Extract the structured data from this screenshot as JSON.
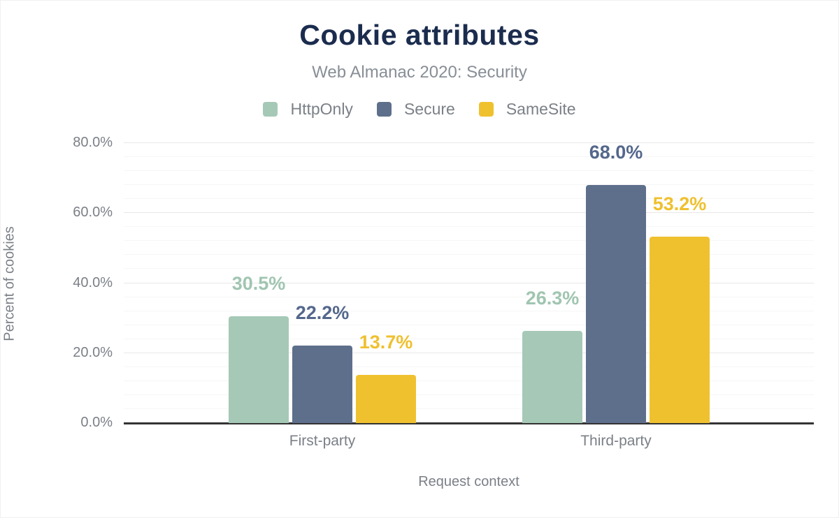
{
  "header": {
    "title": "Cookie attributes",
    "subtitle": "Web Almanac 2020: Security"
  },
  "chart_data": {
    "type": "bar",
    "title": "Cookie attributes",
    "subtitle": "Web Almanac 2020: Security",
    "categories": [
      "First-party",
      "Third-party"
    ],
    "series": [
      {
        "name": "HttpOnly",
        "color": "#a6c9b7",
        "label_color": "#a0c5b1",
        "values": [
          30.5,
          26.3
        ]
      },
      {
        "name": "Secure",
        "color": "#5e6f8c",
        "label_color": "#54678c",
        "values": [
          22.2,
          68.0
        ]
      },
      {
        "name": "SameSite",
        "color": "#f0c12f",
        "label_color": "#efc02f",
        "values": [
          13.7,
          53.2
        ]
      }
    ],
    "value_label_format": "percent_one_decimal",
    "xlabel": "Request context",
    "ylabel": "Percent of cookies",
    "ylim": [
      0,
      80
    ],
    "yticks": [
      {
        "value": 0,
        "label": "0.0%"
      },
      {
        "value": 20,
        "label": "20.0%"
      },
      {
        "value": 40,
        "label": "40.0%"
      },
      {
        "value": 60,
        "label": "60.0%"
      },
      {
        "value": 80,
        "label": "80.0%"
      }
    ],
    "minor_gridline_step": 4,
    "grid": "on",
    "legend_position": "top",
    "axis_color": "#333333",
    "title_color": "#1b2c4e",
    "text_color": "#7b8087"
  }
}
